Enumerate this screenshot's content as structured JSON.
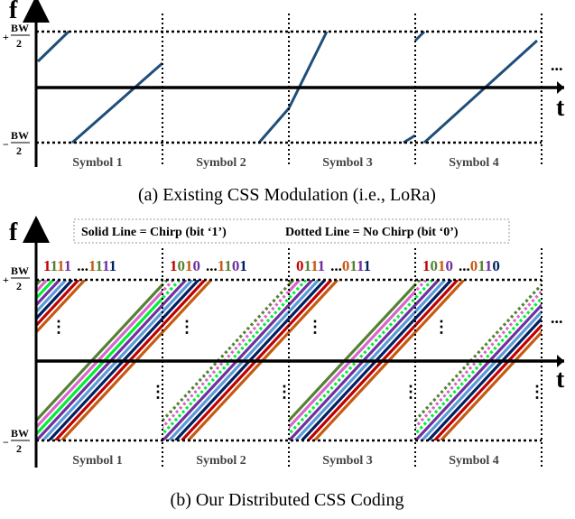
{
  "panel_a": {
    "caption": "(a) Existing CSS Modulation (i.e., LoRa)",
    "y_axis_label": "f",
    "x_axis_label": "t",
    "bw_top_sign": "+",
    "bw_bottom_sign": "−",
    "bw_num": "BW",
    "bw_den": "2",
    "symbols": [
      "Symbol 1",
      "Symbol 2",
      "Symbol 3",
      "Symbol 4"
    ],
    "ellipsis": "...",
    "chirp_color": "#1f4e79"
  },
  "panel_b": {
    "caption": "(b) Our Distributed CSS Coding",
    "y_axis_label": "f",
    "x_axis_label": "t",
    "bw_top_sign": "+",
    "bw_bottom_sign": "−",
    "bw_num": "BW",
    "bw_den": "2",
    "legend_solid": "Solid Line = Chirp (bit ‘1’)",
    "legend_dotted": "Dotted Line = No Chirp (bit ‘0’)",
    "symbols": [
      "Symbol 1",
      "Symbol 2",
      "Symbol 3",
      "Symbol 4"
    ],
    "bit_groups": [
      {
        "first": [
          "1",
          "1",
          "1",
          "1"
        ],
        "sep": "...",
        "last": [
          "1",
          "1",
          "1",
          "1"
        ]
      },
      {
        "first": [
          "1",
          "0",
          "1",
          "0"
        ],
        "sep": "...",
        "last": [
          "1",
          "1",
          "0",
          "1"
        ]
      },
      {
        "first": [
          "0",
          "1",
          "1",
          "1"
        ],
        "sep": "...",
        "last": [
          "0",
          "1",
          "1",
          "1"
        ]
      },
      {
        "first": [
          "1",
          "0",
          "1",
          "0"
        ],
        "sep": "...",
        "last": [
          "0",
          "1",
          "1",
          "0"
        ]
      }
    ],
    "first_colors": [
      "#c00000",
      "#548235",
      "#c55a11",
      "#7030a0"
    ],
    "last_colors": [
      "#c55a11",
      "#548235",
      "#7030a0",
      "#002060"
    ],
    "chirp_colors": [
      "#548235",
      "#d966cc",
      "#00ee33",
      "#7030a0",
      "#5b9bd5",
      "#002060",
      "#c00000",
      "#c55a11"
    ],
    "symbol_bits": [
      [
        1,
        1,
        1,
        1,
        1,
        1,
        1,
        1
      ],
      [
        0,
        0,
        0,
        1,
        1,
        1,
        1,
        1
      ],
      [
        1,
        1,
        0,
        1,
        1,
        1,
        1,
        1
      ],
      [
        0,
        0,
        0,
        1,
        1,
        1,
        1,
        1
      ]
    ],
    "ellipsis": "..."
  }
}
